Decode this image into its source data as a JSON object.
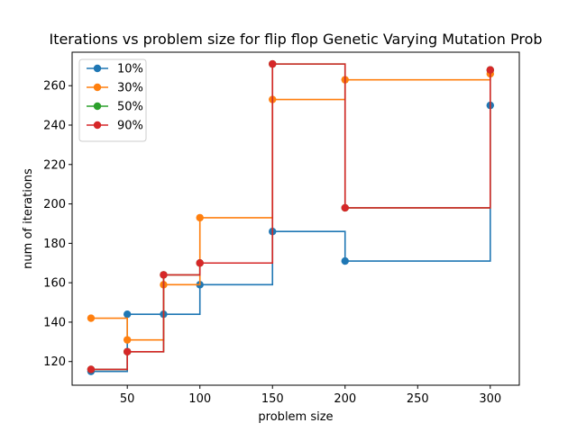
{
  "chart_data": {
    "type": "line",
    "step": "post",
    "title": "Iterations vs problem size for flip flop Genetic Varying Mutation Prob",
    "xlabel": "problem size",
    "ylabel": "num of iterations",
    "xlim": [
      12,
      320
    ],
    "ylim": [
      108,
      277
    ],
    "xticks": [
      50,
      100,
      150,
      200,
      250,
      300
    ],
    "yticks": [
      120,
      140,
      160,
      180,
      200,
      220,
      240,
      260
    ],
    "grid": false,
    "legend": {
      "position": "top-left"
    },
    "x": [
      25,
      50,
      75,
      100,
      150,
      200,
      300
    ],
    "series": [
      {
        "name": "10%",
        "color": "#1f77b4",
        "values": [
          115,
          144,
          144,
          159,
          186,
          171,
          250
        ]
      },
      {
        "name": "30%",
        "color": "#ff7f0e",
        "values": [
          142,
          131,
          159,
          193,
          253,
          263,
          266
        ]
      },
      {
        "name": "50%",
        "color": "#2ca02c",
        "values": [
          116,
          125,
          164,
          170,
          271,
          198,
          268
        ]
      },
      {
        "name": "90%",
        "color": "#d62728",
        "values": [
          116,
          125,
          164,
          170,
          271,
          198,
          268
        ]
      }
    ]
  }
}
